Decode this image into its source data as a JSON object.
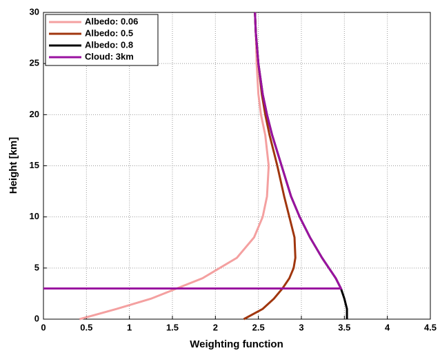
{
  "chart_data": {
    "type": "line",
    "x_label": "Weighting function",
    "y_label": "Height [km]",
    "xlim": [
      0,
      4.5
    ],
    "xticks": [
      0,
      0.5,
      1,
      1.5,
      2,
      2.5,
      3,
      3.5,
      4,
      4.5
    ],
    "ylim": [
      0,
      30
    ],
    "yticks": [
      0,
      5,
      10,
      15,
      20,
      25,
      30
    ],
    "grid": true,
    "legend": "upper-left",
    "series": [
      {
        "name": "Albedo: 0.06",
        "color": "#f4a0a0",
        "y": [
          0,
          1,
          2,
          3,
          4,
          5,
          6,
          8,
          10,
          12,
          15,
          18,
          20,
          22,
          25,
          28,
          30
        ],
        "values": [
          0.42,
          0.85,
          1.25,
          1.55,
          1.85,
          2.05,
          2.25,
          2.45,
          2.55,
          2.6,
          2.62,
          2.58,
          2.53,
          2.5,
          2.48,
          2.47,
          2.46
        ]
      },
      {
        "name": "Albedo: 0.5",
        "color": "#a0360e",
        "y": [
          0,
          1,
          2,
          3,
          4,
          5,
          6,
          8,
          10,
          12,
          15,
          18,
          20,
          22,
          25,
          28,
          30
        ],
        "values": [
          2.33,
          2.55,
          2.68,
          2.78,
          2.86,
          2.91,
          2.93,
          2.92,
          2.86,
          2.8,
          2.72,
          2.63,
          2.58,
          2.54,
          2.5,
          2.47,
          2.46
        ]
      },
      {
        "name": "Albedo: 0.8",
        "color": "#000000",
        "y": [
          0,
          1,
          2,
          3,
          4,
          5,
          6,
          8,
          10,
          12,
          15,
          18,
          20,
          22,
          25,
          28,
          30
        ],
        "values": [
          3.53,
          3.53,
          3.5,
          3.46,
          3.4,
          3.32,
          3.24,
          3.1,
          2.98,
          2.88,
          2.77,
          2.66,
          2.6,
          2.55,
          2.5,
          2.47,
          2.46
        ]
      },
      {
        "name": "Cloud: 3km",
        "color": "#9a12a0",
        "y": [
          3,
          3,
          4,
          5,
          6,
          8,
          10,
          12,
          15,
          18,
          20,
          22,
          25,
          28,
          30
        ],
        "values": [
          0,
          3.46,
          3.4,
          3.32,
          3.24,
          3.1,
          2.98,
          2.88,
          2.77,
          2.66,
          2.6,
          2.55,
          2.5,
          2.47,
          2.46
        ]
      }
    ]
  }
}
